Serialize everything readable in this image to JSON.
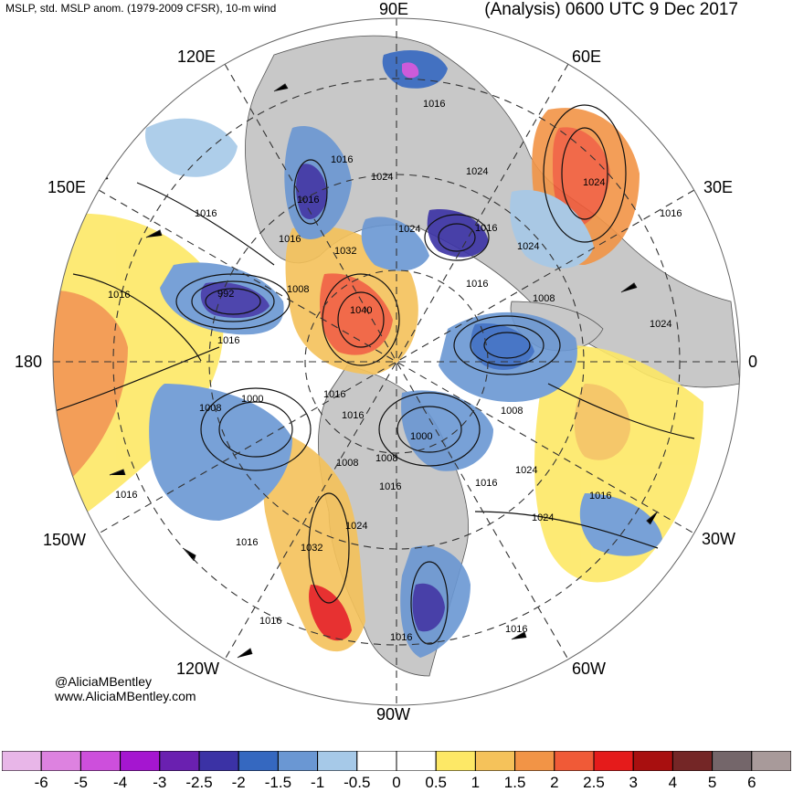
{
  "header": {
    "title_left": "MSLP, std. MSLP anom. (1979-2009 CFSR), 10-m wind",
    "title_right": "(Analysis) 0600 UTC 9 Dec 2017"
  },
  "longitude_labels": {
    "e90": "90E",
    "e60": "60E",
    "e30": "30E",
    "zero": "0",
    "w30": "30W",
    "w60": "60W",
    "w90": "90W",
    "w120": "120W",
    "w150": "150W",
    "d180": "180",
    "e150": "150E",
    "e120": "120E"
  },
  "isobar_labels": [
    "1016",
    "1016",
    "1024",
    "1016",
    "1016",
    "1016",
    "1032",
    "1024",
    "1024",
    "1016",
    "1024",
    "1016",
    "1016",
    "992",
    "1008",
    "1008",
    "1040",
    "1024",
    "1016",
    "1024",
    "1016",
    "1008",
    "1000",
    "1016",
    "1016",
    "1008",
    "1000",
    "1008",
    "1008",
    "1016",
    "1024",
    "1016",
    "1016",
    "1016",
    "1016",
    "1032",
    "1024",
    "1024",
    "1016",
    "1016"
  ],
  "credits": {
    "handle": "@AliciaMBentley",
    "website": "www.AliciaMBentley.com"
  },
  "colorbar": {
    "colors": [
      "#e8b6e8",
      "#dd82e0",
      "#cd4fdc",
      "#a516d0",
      "#6a20b0",
      "#3b32a5",
      "#3568c0",
      "#6a97d3",
      "#a6c9e8",
      "#ffffff",
      "#ffffff",
      "#fde866",
      "#f5c25a",
      "#f29446",
      "#f05a37",
      "#e51b1b",
      "#a80f0f",
      "#742626",
      "#74666a",
      "#a89a9a"
    ],
    "tick_labels": [
      "-6",
      "-5",
      "-4",
      "-3",
      "-2.5",
      "-2",
      "-1.5",
      "-1",
      "-0.5",
      "0",
      "0.5",
      "1",
      "1.5",
      "2",
      "2.5",
      "3",
      "4",
      "5",
      "6"
    ]
  }
}
